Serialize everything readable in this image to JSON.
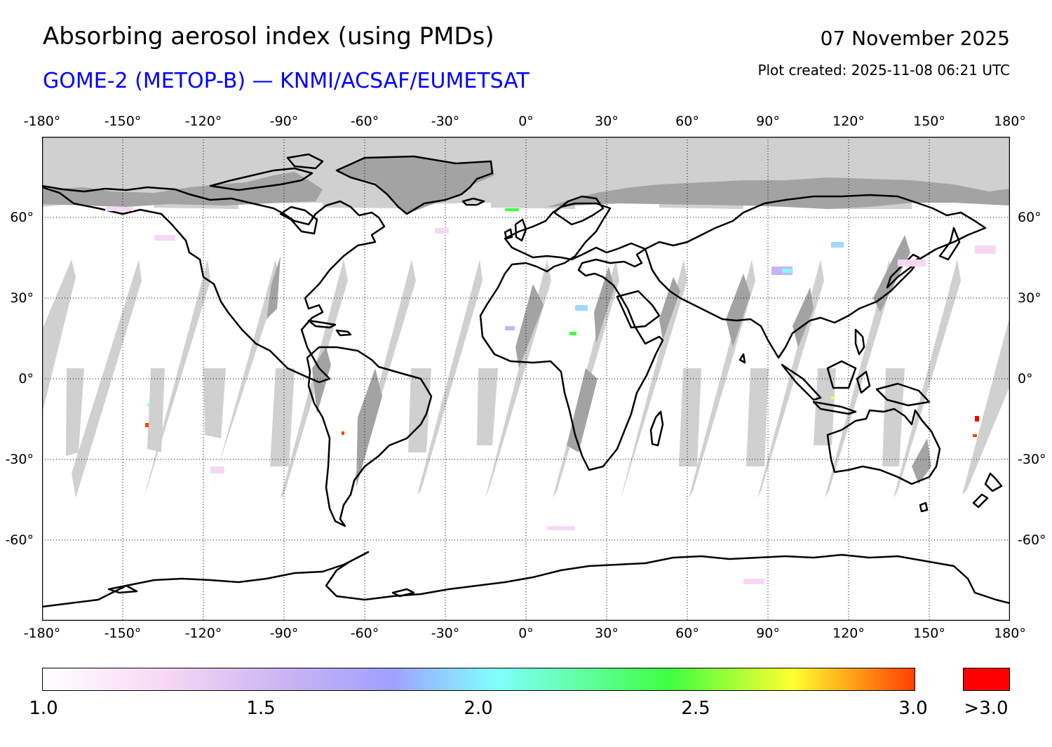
{
  "header": {
    "title": "Absorbing aerosol index (using PMDs)",
    "subtitle": "GOME-2 (METOP-B) — KNMI/ACSAF/EUMETSAT",
    "date": "07 November 2025",
    "plot_created": "Plot created: 2025-11-08 06:21 UTC"
  },
  "map": {
    "projection": "equirectangular",
    "lon_range": [
      -180,
      180
    ],
    "lat_range": [
      -90,
      90
    ],
    "lon_labels": [
      "-180°",
      "-150°",
      "-120°",
      "-90°",
      "-60°",
      "-30°",
      "0°",
      "30°",
      "60°",
      "90°",
      "120°",
      "150°",
      "180°"
    ],
    "lat_labels": [
      "60°",
      "30°",
      "0°",
      "-30°",
      "-60°"
    ],
    "lat_values": [
      60,
      30,
      0,
      -30,
      -60
    ],
    "colors": {
      "no_data": "#d0d0d0",
      "land_no_data": "#a3a3a3",
      "coastline": "#000000",
      "grid": "#000000"
    }
  },
  "colorbar": {
    "min": 1.0,
    "max": 3.0,
    "tick_labels": [
      "1.0",
      "1.5",
      "2.0",
      "2.5",
      "3.0"
    ],
    "tick_values": [
      1.0,
      1.5,
      2.0,
      2.5,
      3.0
    ],
    "overflow_label": ">3.0",
    "overflow_color": "#ff0000",
    "stops": [
      "#ffffff",
      "#f7d8f4",
      "#c8b4f4",
      "#a0a0ff",
      "#80ffff",
      "#40ff40",
      "#ffff30",
      "#ff4000"
    ]
  }
}
